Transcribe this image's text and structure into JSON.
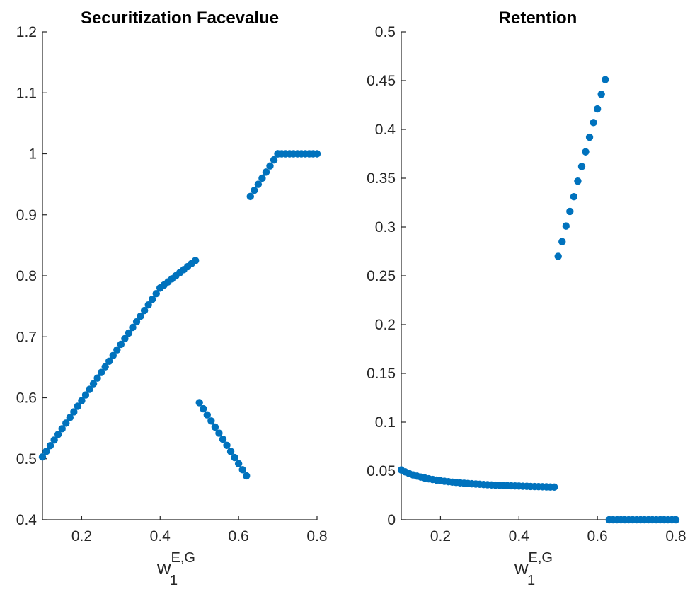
{
  "chart_data": [
    {
      "type": "scatter",
      "title": "Securitization Facevalue",
      "xlabel_base": "w",
      "xlabel_sub": "1",
      "xlabel_sup": "E,G",
      "xlim": [
        0.1,
        0.8
      ],
      "ylim": [
        0.4,
        1.2
      ],
      "xticks": [
        0.2,
        0.4,
        0.6,
        0.8
      ],
      "xtick_labels": [
        "0.2",
        "0.4",
        "0.6",
        "0.8"
      ],
      "yticks": [
        0.4,
        0.5,
        0.6,
        0.7,
        0.8,
        0.9,
        1.0,
        1.1,
        1.2
      ],
      "ytick_labels": [
        "0.4",
        "0.5",
        "0.6",
        "0.7",
        "0.8",
        "0.9",
        "1",
        "1.1",
        "1.2"
      ],
      "grid": false,
      "color": "#0072BD",
      "segments": [
        {
          "x_start": 0.1,
          "x_end": 0.4,
          "y_start": 0.503,
          "y_end": 0.78,
          "count": 31
        },
        {
          "x_start": 0.4,
          "x_end": 0.49,
          "y_start": 0.78,
          "y_end": 0.825,
          "count": 10
        },
        {
          "x_start": 0.5,
          "x_end": 0.62,
          "y_start": 0.592,
          "y_end": 0.472,
          "count": 13
        },
        {
          "x_start": 0.63,
          "x_end": 0.7,
          "y_start": 0.93,
          "y_end": 1.0,
          "count": 8
        },
        {
          "x_start": 0.7,
          "x_end": 0.8,
          "y_start": 1.0,
          "y_end": 1.0,
          "count": 11
        }
      ]
    },
    {
      "type": "scatter",
      "title": "Retention",
      "xlabel_base": "w",
      "xlabel_sub": "1",
      "xlabel_sup": "E,G",
      "xlim": [
        0.1,
        0.8
      ],
      "ylim": [
        0,
        0.5
      ],
      "xticks": [
        0.2,
        0.4,
        0.6,
        0.8
      ],
      "xtick_labels": [
        "0.2",
        "0.4",
        "0.6",
        "0.8"
      ],
      "yticks": [
        0,
        0.05,
        0.1,
        0.15,
        0.2,
        0.25,
        0.3,
        0.35,
        0.4,
        0.45,
        0.5
      ],
      "ytick_labels": [
        "0",
        "0.05",
        "0.1",
        "0.15",
        "0.2",
        "0.25",
        "0.3",
        "0.35",
        "0.4",
        "0.45",
        "0.5"
      ],
      "grid": false,
      "color": "#0072BD",
      "points": [
        [
          0.5,
          0.27
        ],
        [
          0.51,
          0.285
        ],
        [
          0.52,
          0.301
        ],
        [
          0.53,
          0.316
        ],
        [
          0.54,
          0.331
        ],
        [
          0.55,
          0.347
        ],
        [
          0.56,
          0.362
        ],
        [
          0.57,
          0.377
        ],
        [
          0.58,
          0.392
        ],
        [
          0.59,
          0.407
        ],
        [
          0.6,
          0.421
        ],
        [
          0.61,
          0.436
        ],
        [
          0.62,
          0.451
        ]
      ],
      "curve": {
        "x_start": 0.1,
        "x_end": 0.49,
        "count": 40,
        "y_at_start": 0.051,
        "y_at_end": 0.0335
      },
      "zeros": {
        "x_start": 0.63,
        "x_end": 0.8,
        "count": 18,
        "y": 0
      }
    }
  ]
}
